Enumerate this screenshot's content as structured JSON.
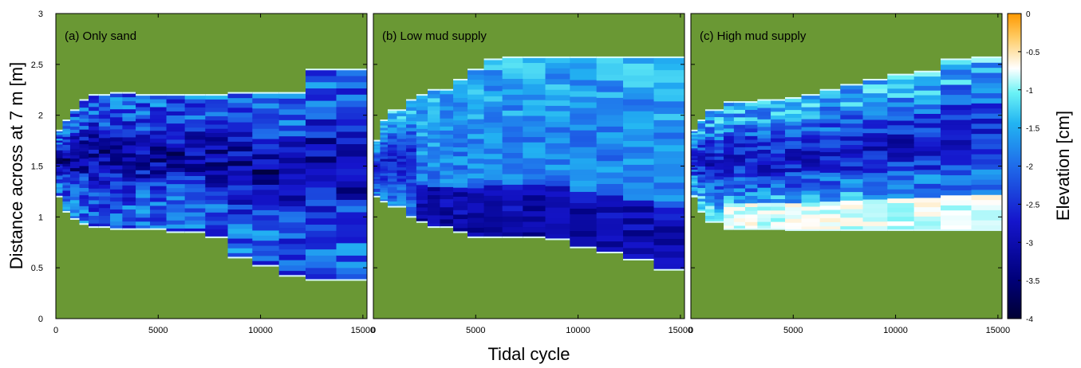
{
  "chart_data": {
    "type": "heatmap",
    "panels": [
      {
        "label": "(a) Only sand",
        "profile": [
          [
            0,
            1.2,
            1.85
          ],
          [
            330,
            1.05,
            1.95
          ],
          [
            700,
            0.98,
            2.05
          ],
          [
            1150,
            0.93,
            2.15
          ],
          [
            1600,
            0.9,
            2.2
          ],
          [
            2400,
            0.88,
            2.22
          ],
          [
            3500,
            0.88,
            2.2
          ],
          [
            5000,
            0.85,
            2.2
          ],
          [
            6500,
            0.8,
            2.2
          ],
          [
            7500,
            0.6,
            2.22
          ],
          [
            9000,
            0.52,
            2.22
          ],
          [
            10000,
            0.42,
            2.22
          ],
          [
            12000,
            0.4,
            2.22
          ],
          [
            12100,
            0.38,
            2.45
          ],
          [
            14300,
            0.38,
            2.45
          ],
          [
            14400,
            0.36,
            2.5
          ],
          [
            15200,
            0.36,
            2.5
          ]
        ]
      },
      {
        "label": "(b) Low mud supply",
        "profile": [
          [
            0,
            1.2,
            1.75
          ],
          [
            300,
            1.15,
            1.95
          ],
          [
            700,
            1.1,
            2.05
          ],
          [
            1200,
            1.0,
            2.15
          ],
          [
            1800,
            0.95,
            2.2
          ],
          [
            2500,
            0.9,
            2.25
          ],
          [
            3500,
            0.85,
            2.35
          ],
          [
            4500,
            0.8,
            2.45
          ],
          [
            5200,
            0.8,
            2.55
          ],
          [
            6000,
            0.8,
            2.57
          ],
          [
            7500,
            0.78,
            2.57
          ],
          [
            9000,
            0.7,
            2.57
          ],
          [
            10500,
            0.65,
            2.57
          ],
          [
            11500,
            0.58,
            2.57
          ],
          [
            12500,
            0.53,
            2.57
          ],
          [
            13500,
            0.48,
            2.57
          ],
          [
            14500,
            0.46,
            2.57
          ],
          [
            15200,
            0.42,
            2.57
          ]
        ]
      },
      {
        "label": "(c) High mud supply",
        "profile": [
          [
            0,
            1.2,
            1.85
          ],
          [
            300,
            1.05,
            1.95
          ],
          [
            700,
            0.95,
            2.05
          ],
          [
            1200,
            0.9,
            2.12
          ],
          [
            1600,
            0.88,
            2.13
          ],
          [
            3000,
            0.88,
            2.15
          ],
          [
            4000,
            0.87,
            2.17
          ],
          [
            5000,
            0.87,
            2.2
          ],
          [
            6000,
            0.87,
            2.25
          ],
          [
            7000,
            0.87,
            2.3
          ],
          [
            8000,
            0.87,
            2.35
          ],
          [
            9000,
            0.87,
            2.4
          ],
          [
            10000,
            0.87,
            2.43
          ],
          [
            11000,
            0.87,
            2.5
          ],
          [
            12000,
            0.87,
            2.55
          ],
          [
            13000,
            0.87,
            2.57
          ],
          [
            14000,
            0.87,
            2.58
          ],
          [
            15200,
            0.87,
            2.58
          ]
        ]
      }
    ],
    "xlabel": "Tidal cycle",
    "ylabel": "Distance across at 7 m [m]",
    "xlim": [
      0,
      15200
    ],
    "ylim": [
      0,
      3
    ],
    "xticks": [
      0,
      5000,
      10000,
      15000
    ],
    "yticks": [
      0,
      0.5,
      1,
      1.5,
      2,
      2.5,
      3
    ],
    "colorbar": {
      "label": "Elevation [cm]",
      "range": [
        -4,
        0
      ],
      "ticks": [
        0,
        -0.5,
        -1,
        -1.5,
        -2,
        -2.5,
        -3,
        -3.5,
        -4
      ],
      "colors": [
        "#000033",
        "#00007a",
        "#1515cc",
        "#1f6bea",
        "#22b4f2",
        "#6af2f5",
        "#ffffff",
        "#ffcc66",
        "#ff9900"
      ],
      "positions": [
        0,
        0.13,
        0.32,
        0.5,
        0.64,
        0.74,
        0.82,
        0.92,
        1
      ]
    },
    "background_color": "#6a9834"
  }
}
